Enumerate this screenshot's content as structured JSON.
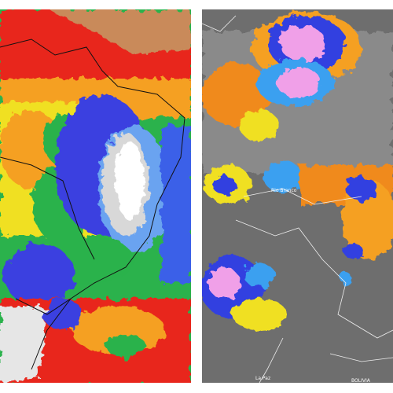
{
  "left_map": {
    "type": "precipitation-anomaly-map"
  },
  "right_map": {
    "type": "satellite-infrared",
    "labels": [
      "Rio Branco",
      "La Paz",
      "BOLIVIA"
    ]
  }
}
